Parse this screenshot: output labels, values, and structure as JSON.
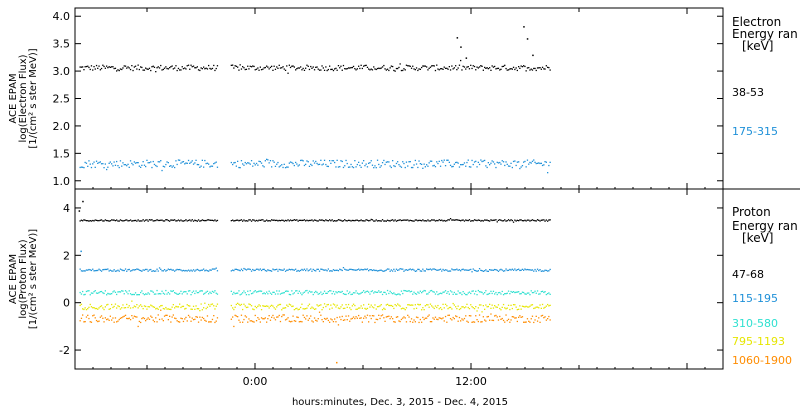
{
  "chart_data": {
    "type": "scatter",
    "xlabel": "hours:minutes, Dec.  3, 2015 - Dec.  4, 2015",
    "x_tick_labels": [
      "0:00",
      "12:00"
    ],
    "x_range_hours": [
      -10,
      26
    ],
    "panels": [
      {
        "id": "electron",
        "ylabel_lines": [
          "ACE EPAM",
          "log(Electron Flux)",
          "[1/(cm² s ster MeV)]"
        ],
        "ylim": [
          0.85,
          4.15
        ],
        "yticks": [
          "1.0",
          "1.5",
          "2.0",
          "2.5",
          "3.0",
          "3.5",
          "4.0"
        ],
        "ytick_values": [
          1.0,
          1.5,
          2.0,
          2.5,
          3.0,
          3.5,
          4.0
        ],
        "legend_title": [
          "Electron",
          "Energy ran",
          "[keV]"
        ],
        "gap_hours": [
          -2.1,
          -1.4
        ],
        "data_end_hour": 16.4,
        "series": [
          {
            "name": "38-53",
            "color": "#000000",
            "base": 3.07,
            "noise": 0.05,
            "events": [
              {
                "hour": 11.2,
                "value": 3.62
              },
              {
                "hour": 11.4,
                "value": 3.45
              },
              {
                "hour": 11.7,
                "value": 3.25
              },
              {
                "hour": 14.9,
                "value": 3.82
              },
              {
                "hour": 15.1,
                "value": 3.6
              },
              {
                "hour": 15.4,
                "value": 3.3
              }
            ]
          },
          {
            "name": "175-315",
            "color": "#1e90d8",
            "base": 1.32,
            "noise": 0.07,
            "events": []
          }
        ]
      },
      {
        "id": "proton",
        "ylabel_lines": [
          "ACE EPAM",
          "log(Proton Flux)",
          "[1/(cm² s ster MeV)]"
        ],
        "ylim": [
          -2.8,
          4.8
        ],
        "yticks": [
          "-2",
          "0",
          "2",
          "4"
        ],
        "ytick_values": [
          -2,
          0,
          2,
          4
        ],
        "legend_title": [
          "Proton",
          "Energy ran",
          "[keV]"
        ],
        "gap_hours": [
          -2.1,
          -1.4
        ],
        "data_end_hour": 16.4,
        "series": [
          {
            "name": "47-68",
            "color": "#000000",
            "base": 3.5,
            "noise": 0.03,
            "events": [
              {
                "hour": -9.6,
                "value": 4.3
              },
              {
                "hour": -9.8,
                "value": 3.9
              }
            ]
          },
          {
            "name": "115-195",
            "color": "#1e90d8",
            "base": 1.4,
            "noise": 0.05,
            "events": [
              {
                "hour": -9.7,
                "value": 2.2
              }
            ]
          },
          {
            "name": "310-580",
            "color": "#2fe0d0",
            "base": 0.45,
            "noise": 0.09,
            "events": []
          },
          {
            "name": "795-1193",
            "color": "#e6e600",
            "base": -0.15,
            "noise": 0.12,
            "events": []
          },
          {
            "name": "1060-1900",
            "color": "#ff8c00",
            "base": -0.65,
            "noise": 0.16,
            "events": [
              {
                "hour": 4.5,
                "value": -2.5
              }
            ]
          }
        ]
      }
    ]
  }
}
